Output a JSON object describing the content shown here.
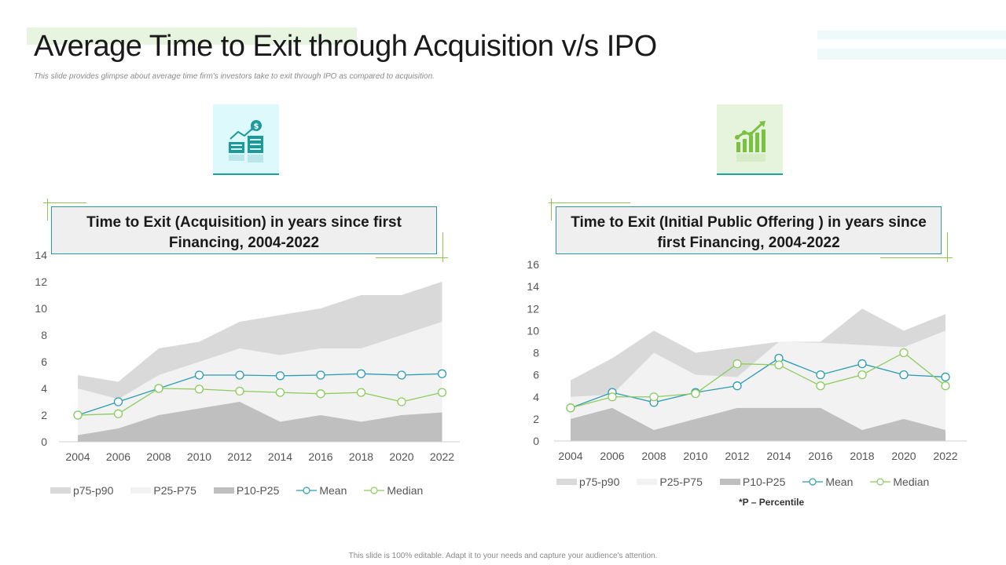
{
  "slide": {
    "title": "Average Time to Exit through Acquisition v/s IPO",
    "subtitle": "This slide provides glimpse about average time firm's investors take to exit through IPO as compared to acquisition.",
    "footnote": "*P – Percentile",
    "footer": "This slide is 100% editable. Adapt it to your needs and capture your audience's attention.",
    "icons": [
      "buildings-growth-icon",
      "bar-chart-growth-icon"
    ]
  },
  "colors": {
    "p75_p90": "#d9d9d9",
    "p25_p75": "#f2f2f2",
    "p10_p25": "#bfbfbf",
    "mean": "#2b9cb4",
    "median": "#8ccc5c",
    "accent_teal": "#2a9aa0",
    "accent_green": "#8cc84b"
  },
  "chart_data": [
    {
      "type": "area",
      "title": "Time to Exit (Acquisition) in years since first Financing, 2004-2022",
      "title_lines": [
        "Time to Exit (Acquisition) in years since first",
        "Financing, 2004-2022"
      ],
      "categories": [
        "2004",
        "2006",
        "2008",
        "2010",
        "2012",
        "2014",
        "2016",
        "2018",
        "2020",
        "2022"
      ],
      "ylim": [
        0,
        14
      ],
      "yticks": [
        "0",
        "2",
        "4",
        "6",
        "8",
        "10",
        "12",
        "14"
      ],
      "xlabel": "",
      "ylabel": "",
      "grid": false,
      "legend_position": "bottom",
      "series": [
        {
          "name": "p75-p90",
          "kind": "area",
          "values": [
            5,
            4.5,
            7,
            7.5,
            9,
            9.5,
            10,
            11,
            11,
            12
          ]
        },
        {
          "name": "P25-P75",
          "kind": "area",
          "values": [
            4,
            3.2,
            5,
            6,
            7,
            6.5,
            7,
            7,
            8,
            9
          ]
        },
        {
          "name": "P10-P25",
          "kind": "area",
          "values": [
            0.5,
            1,
            2,
            2.5,
            3,
            1.5,
            2,
            1.5,
            2,
            2.2
          ]
        },
        {
          "name": "Mean",
          "kind": "line",
          "values": [
            2,
            3,
            4,
            5,
            5,
            4.95,
            5,
            5.1,
            5,
            5.1
          ]
        },
        {
          "name": "Median",
          "kind": "line",
          "values": [
            2,
            2.1,
            4,
            3.95,
            3.8,
            3.7,
            3.6,
            3.7,
            3,
            3.7
          ]
        }
      ]
    },
    {
      "type": "area",
      "title": "Time to Exit (Initial Public Offering ) in years since first Financing, 2004-2022",
      "title_lines": [
        "Time to Exit (Initial Public Offering ) in years since",
        "first Financing, 2004-2022"
      ],
      "categories": [
        "2004",
        "2006",
        "2008",
        "2010",
        "2012",
        "2014",
        "2016",
        "2018",
        "2020",
        "2022"
      ],
      "ylim": [
        0,
        16
      ],
      "yticks": [
        "0",
        "2",
        "4",
        "6",
        "8",
        "10",
        "12",
        "14",
        "16"
      ],
      "xlabel": "",
      "ylabel": "",
      "grid": false,
      "legend_position": "bottom",
      "series": [
        {
          "name": "p75-p90",
          "kind": "area",
          "values": [
            5.5,
            7.5,
            10,
            8,
            8.5,
            9,
            9,
            12,
            10,
            11.5
          ]
        },
        {
          "name": "P25-P75",
          "kind": "area",
          "values": [
            4,
            4.2,
            8,
            6,
            5.8,
            9,
            8.9,
            8.7,
            8.5,
            10
          ]
        },
        {
          "name": "P10-P25",
          "kind": "area",
          "values": [
            2,
            3,
            1,
            2,
            3,
            3,
            3,
            1,
            2,
            1
          ]
        },
        {
          "name": "Mean",
          "kind": "line",
          "values": [
            3,
            4.4,
            3.5,
            4.4,
            5,
            7.5,
            6,
            7,
            6,
            5.8
          ]
        },
        {
          "name": "Median",
          "kind": "line",
          "values": [
            3,
            4,
            4,
            4.3,
            7,
            6.9,
            5,
            6,
            8,
            5
          ]
        }
      ]
    }
  ]
}
